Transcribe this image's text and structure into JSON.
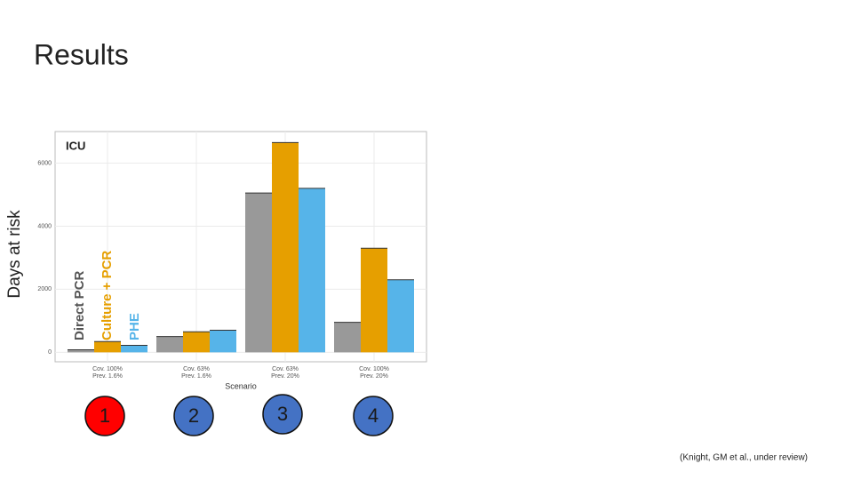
{
  "slide": {
    "title": "Results",
    "citation": "(Knight, GM et al., under review)",
    "badges": [
      "1",
      "2",
      "3",
      "4"
    ]
  },
  "chart_data": {
    "type": "bar",
    "panel_label": "ICU",
    "y_label": "Days at risk",
    "x_label": "Scenario",
    "categories": [
      "Cov. 100%\nPrev. 1.6%",
      "Cov. 63%\nPrev. 1.6%",
      "Cov. 63%\nPrev. 20%",
      "Cov. 100%\nPrev. 20%"
    ],
    "series": [
      {
        "name": "Direct PCR",
        "color": "#999999",
        "values": [
          80,
          500,
          5050,
          950
        ]
      },
      {
        "name": "Culture + PCR",
        "color": "#e69f00",
        "values": [
          340,
          650,
          6650,
          3300
        ]
      },
      {
        "name": "PHE",
        "color": "#56b4e9",
        "values": [
          220,
          700,
          5200,
          2300
        ]
      }
    ],
    "ylim": [
      -300,
      7000
    ],
    "yticks": [
      0,
      2000,
      4000,
      6000
    ],
    "grid": true
  }
}
